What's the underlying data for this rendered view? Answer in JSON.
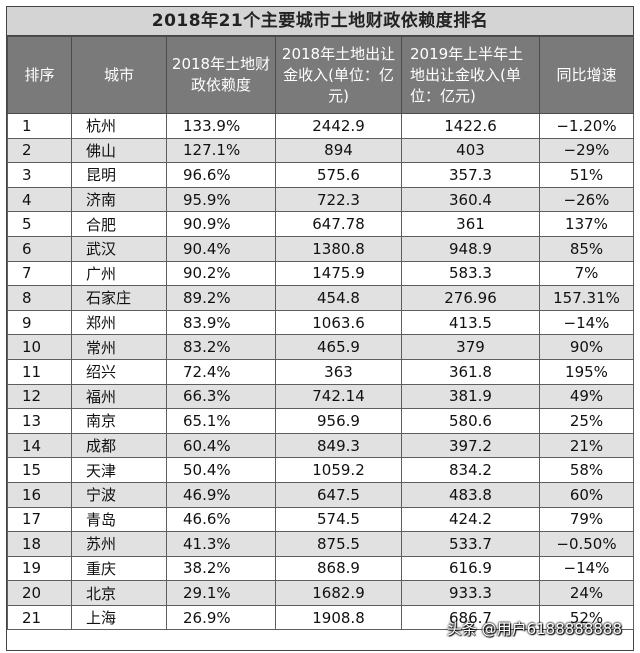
{
  "title": "2018年21个主要城市土地财政依赖度排名",
  "headers": [
    "排序",
    "城市",
    "2018年土地财政依赖度",
    "2018年土地出让金收入(单位：亿元)",
    "2019年上半年土地出让金收入(单位：亿元)",
    "同比增速"
  ],
  "rows": [
    {
      "rank": "1",
      "city": "杭州",
      "dependency": "133.9%",
      "income2018": "2442.9",
      "income2019h1": "1422.6",
      "yoy": "−1.20%"
    },
    {
      "rank": "2",
      "city": "佛山",
      "dependency": "127.1%",
      "income2018": "894",
      "income2019h1": "403",
      "yoy": "−29%"
    },
    {
      "rank": "3",
      "city": "昆明",
      "dependency": "96.6%",
      "income2018": "575.6",
      "income2019h1": "357.3",
      "yoy": "51%"
    },
    {
      "rank": "4",
      "city": "济南",
      "dependency": "95.9%",
      "income2018": "722.3",
      "income2019h1": "360.4",
      "yoy": "−26%"
    },
    {
      "rank": "5",
      "city": "合肥",
      "dependency": "90.9%",
      "income2018": "647.78",
      "income2019h1": "361",
      "yoy": "137%"
    },
    {
      "rank": "6",
      "city": "武汉",
      "dependency": "90.4%",
      "income2018": "1380.8",
      "income2019h1": "948.9",
      "yoy": "85%"
    },
    {
      "rank": "7",
      "city": "广州",
      "dependency": "90.2%",
      "income2018": "1475.9",
      "income2019h1": "583.3",
      "yoy": "7%"
    },
    {
      "rank": "8",
      "city": "石家庄",
      "dependency": "89.2%",
      "income2018": "454.8",
      "income2019h1": "276.96",
      "yoy": "157.31%"
    },
    {
      "rank": "9",
      "city": "郑州",
      "dependency": "83.9%",
      "income2018": "1063.6",
      "income2019h1": "413.5",
      "yoy": "−14%"
    },
    {
      "rank": "10",
      "city": "常州",
      "dependency": "83.2%",
      "income2018": "465.9",
      "income2019h1": "379",
      "yoy": "90%"
    },
    {
      "rank": "11",
      "city": "绍兴",
      "dependency": "72.4%",
      "income2018": "363",
      "income2019h1": "361.8",
      "yoy": "195%"
    },
    {
      "rank": "12",
      "city": "福州",
      "dependency": "66.3%",
      "income2018": "742.14",
      "income2019h1": "381.9",
      "yoy": "49%"
    },
    {
      "rank": "13",
      "city": "南京",
      "dependency": "65.1%",
      "income2018": "956.9",
      "income2019h1": "580.6",
      "yoy": "25%"
    },
    {
      "rank": "14",
      "city": "成都",
      "dependency": "60.4%",
      "income2018": "849.3",
      "income2019h1": "397.2",
      "yoy": "21%"
    },
    {
      "rank": "15",
      "city": "天津",
      "dependency": "50.4%",
      "income2018": "1059.2",
      "income2019h1": "834.2",
      "yoy": "58%"
    },
    {
      "rank": "16",
      "city": "宁波",
      "dependency": "46.9%",
      "income2018": "647.5",
      "income2019h1": "483.8",
      "yoy": "60%"
    },
    {
      "rank": "17",
      "city": "青岛",
      "dependency": "46.6%",
      "income2018": "574.5",
      "income2019h1": "424.2",
      "yoy": "79%"
    },
    {
      "rank": "18",
      "city": "苏州",
      "dependency": "41.3%",
      "income2018": "875.5",
      "income2019h1": "533.7",
      "yoy": "−0.50%"
    },
    {
      "rank": "19",
      "city": "重庆",
      "dependency": "38.2%",
      "income2018": "868.9",
      "income2019h1": "616.9",
      "yoy": "−14%"
    },
    {
      "rank": "20",
      "city": "北京",
      "dependency": "29.1%",
      "income2018": "1682.9",
      "income2019h1": "933.3",
      "yoy": "24%"
    },
    {
      "rank": "21",
      "city": "上海",
      "dependency": "26.9%",
      "income2018": "1908.8",
      "income2019h1": "686.7",
      "yoy": "52%"
    }
  ],
  "watermark": "头条 @用户6188888888",
  "colors": {
    "header_bg": "#7a7a7a",
    "title_bg": "#d4d4d4",
    "even_row_bg": "#e1e1e1"
  }
}
